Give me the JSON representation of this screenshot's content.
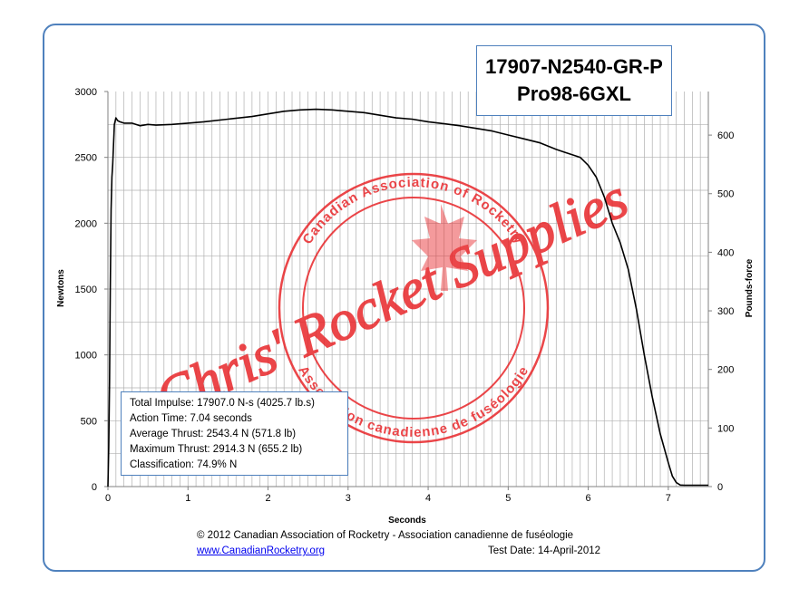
{
  "title": {
    "line1": "17907-N2540-GR-P",
    "line2": "Pro98-6GXL"
  },
  "stats": {
    "total_impulse": "Total Impulse: 17907.0 N-s (4025.7 lb.s)",
    "action_time": "Action Time: 7.04 seconds",
    "average_thrust": "Average Thrust: 2543.4 N (571.8 lb)",
    "maximum_thrust": "Maximum Thrust: 2914.3 N (655.2 lb)",
    "classification": "Classification: 74.9% N"
  },
  "footer": {
    "copyright": "© 2012 Canadian Association of Rocketry - Association canadienne de fuséologie",
    "link": "www.CanadianRocketry.org",
    "test_date": "Test  Date: 14-April-2012"
  },
  "watermark": {
    "main": "Chris' Rocket Supplies",
    "ring_top": "Canadian Association of Rocketry",
    "ring_bottom": "Association canadienne de fuséologie"
  },
  "colors": {
    "frame": "#4f81bd",
    "watermark": "#e8262a",
    "curve": "#000000",
    "grid": "#b0b0b0"
  },
  "chart_data": {
    "type": "line",
    "xlabel": "Seconds",
    "ylabel": "Newtons",
    "y2label": "Pounds-force",
    "xlim": [
      0,
      7.5
    ],
    "ylim": [
      0,
      3000
    ],
    "y2lim": [
      0,
      674.4
    ],
    "x_ticks": [
      "0",
      "1",
      "2",
      "3",
      "4",
      "5",
      "6",
      "7"
    ],
    "y_ticks": [
      "0",
      "500",
      "1000",
      "1500",
      "2000",
      "2500",
      "3000"
    ],
    "y2_ticks": [
      "0",
      "100",
      "200",
      "300",
      "400",
      "500",
      "600"
    ],
    "grid": true,
    "series": [
      {
        "x": [
          0.0,
          0.01,
          0.02,
          0.03,
          0.04,
          0.05,
          0.06,
          0.07,
          0.08,
          0.1,
          0.12,
          0.15,
          0.2,
          0.3,
          0.4,
          0.5,
          0.6,
          0.8,
          1.0,
          1.2,
          1.5,
          1.8,
          2.0,
          2.2,
          2.4,
          2.6,
          2.8,
          3.0,
          3.2,
          3.4,
          3.6,
          3.8,
          4.0,
          4.2,
          4.4,
          4.6,
          4.8,
          5.0,
          5.2,
          5.4,
          5.6,
          5.7,
          5.8,
          5.9,
          6.0,
          6.1,
          6.2,
          6.3,
          6.4,
          6.5,
          6.6,
          6.7,
          6.8,
          6.9,
          7.0,
          7.05,
          7.1,
          7.15,
          7.2,
          7.3,
          7.4,
          7.5
        ],
        "y": [
          0,
          300,
          800,
          1500,
          2100,
          2350,
          2450,
          2600,
          2750,
          2800,
          2780,
          2770,
          2760,
          2760,
          2740,
          2750,
          2745,
          2750,
          2760,
          2770,
          2790,
          2810,
          2830,
          2850,
          2860,
          2865,
          2860,
          2850,
          2840,
          2820,
          2800,
          2790,
          2770,
          2755,
          2740,
          2720,
          2700,
          2670,
          2640,
          2610,
          2560,
          2540,
          2520,
          2500,
          2440,
          2350,
          2200,
          2000,
          1850,
          1650,
          1350,
          1000,
          680,
          400,
          180,
          80,
          30,
          12,
          10,
          10,
          10,
          10
        ]
      }
    ]
  }
}
